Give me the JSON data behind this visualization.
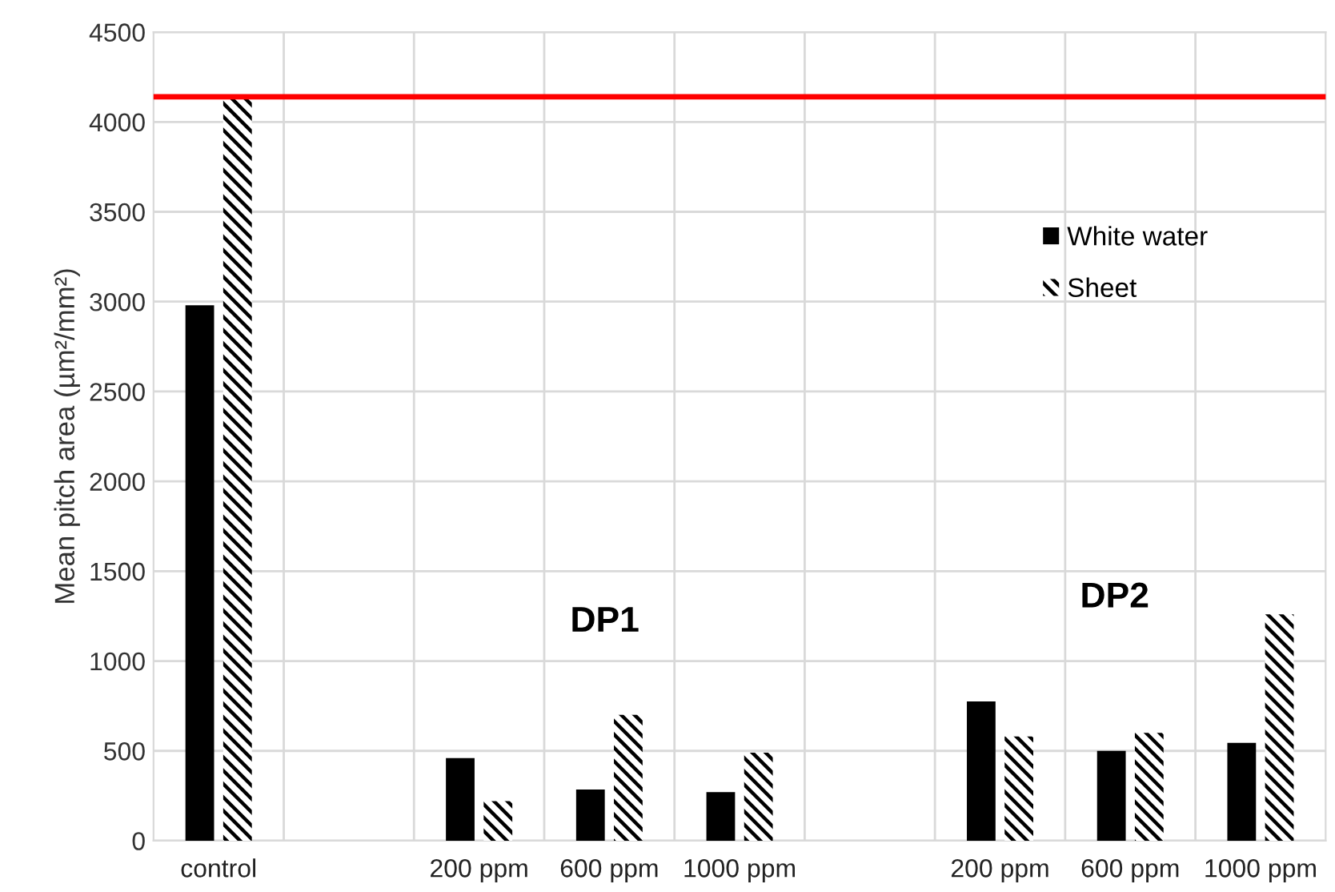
{
  "chart_data": {
    "type": "bar",
    "ylabel": "Mean pitch area (µm²/mm²)",
    "categories": [
      "control",
      null,
      "200 ppm",
      "600 ppm",
      "1000 ppm",
      null,
      "200 ppm",
      "600 ppm",
      "1000 ppm"
    ],
    "series": [
      {
        "name": "White water",
        "color": "#000000",
        "values": [
          2980,
          null,
          460,
          285,
          270,
          null,
          775,
          500,
          545
        ]
      },
      {
        "name": "Sheet",
        "color": "#000000",
        "values": [
          4130,
          null,
          220,
          700,
          490,
          null,
          580,
          600,
          1260
        ]
      }
    ],
    "ylim": [
      0,
      4500
    ],
    "yticks": [
      0,
      500,
      1000,
      1500,
      2000,
      2500,
      3000,
      3500,
      4000,
      4500
    ],
    "ref_lines": [
      {
        "axis": "y",
        "value": 4140,
        "color": "#ff0000"
      }
    ],
    "annotations": [
      "DP1",
      "DP2"
    ],
    "grid": true,
    "legend": "top right"
  }
}
